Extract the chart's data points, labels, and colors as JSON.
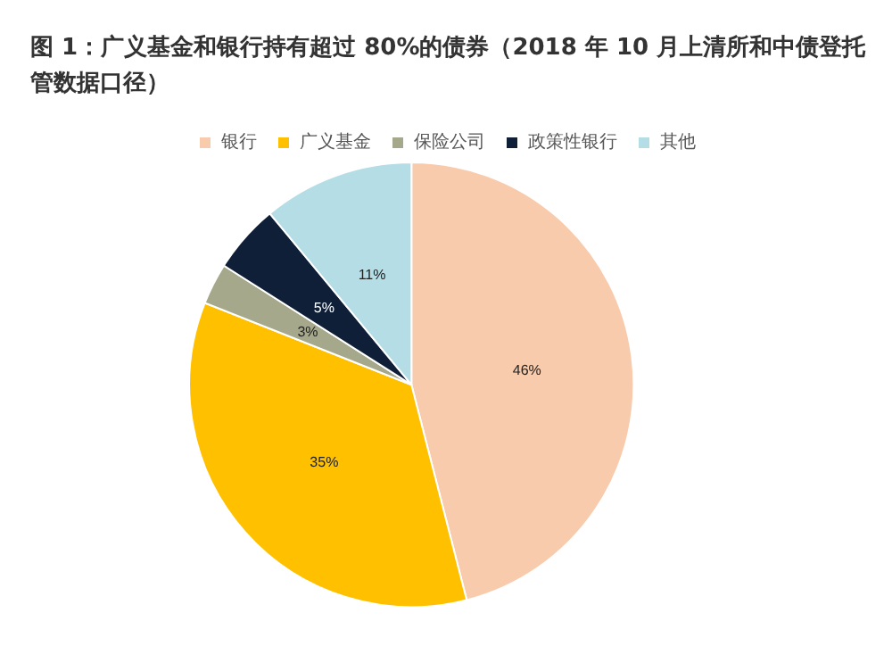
{
  "chart_data": {
    "type": "pie",
    "title": "图 1：广义基金和银行持有超过 80%的债券（2018 年 10 月上清所和中债登托管数据口径）",
    "categories": [
      "银行",
      "广义基金",
      "保险公司",
      "政策性银行",
      "其他"
    ],
    "values": [
      46,
      35,
      3,
      5,
      11
    ],
    "value_labels": [
      "46%",
      "35%",
      "3%",
      "5%",
      "11%"
    ],
    "colors": [
      "#f8cbad",
      "#ffc000",
      "#a5a88a",
      "#0f1f38",
      "#b5dde6"
    ],
    "legend": "top"
  }
}
